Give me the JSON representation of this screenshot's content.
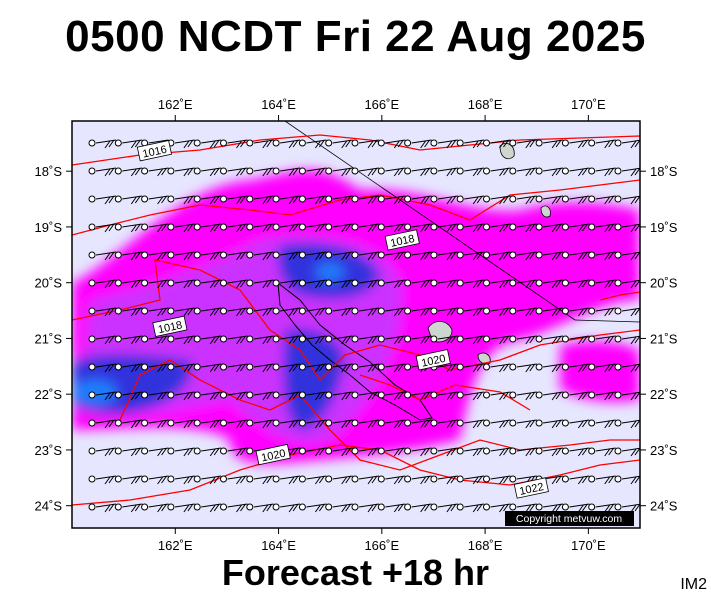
{
  "header": {
    "title": "0500 NCDT Fri 22 Aug 2025"
  },
  "footer": {
    "forecast": "Forecast +18 hr",
    "code": "IM2"
  },
  "map": {
    "lon_range": [
      160,
      171
    ],
    "lat_range": [
      -24.4,
      -17.1
    ],
    "lon_ticks": [
      {
        "lon": 162,
        "label": "162˚E"
      },
      {
        "lon": 164,
        "label": "164˚E"
      },
      {
        "lon": 166,
        "label": "166˚E"
      },
      {
        "lon": 168,
        "label": "168˚E"
      },
      {
        "lon": 170,
        "label": "170˚E"
      }
    ],
    "lat_ticks": [
      {
        "lat": -18,
        "label": "18˚S"
      },
      {
        "lat": -19,
        "label": "19˚S"
      },
      {
        "lat": -20,
        "label": "20˚S"
      },
      {
        "lat": -21,
        "label": "21˚S"
      },
      {
        "lat": -22,
        "label": "22˚S"
      },
      {
        "lat": -23,
        "label": "23˚S"
      },
      {
        "lat": -24,
        "label": "24˚S"
      }
    ],
    "isobars": [
      {
        "value": "1016",
        "label_lon": 161.6,
        "label_lat": -17.65
      },
      {
        "value": "1018",
        "label_lon": 161.9,
        "label_lat": -20.8
      },
      {
        "value": "1018",
        "label_lon": 166.4,
        "label_lat": -19.25
      },
      {
        "value": "1020",
        "label_lon": 167.0,
        "label_lat": -21.4
      },
      {
        "value": "1020",
        "label_lon": 163.9,
        "label_lat": -23.1
      },
      {
        "value": "1022",
        "label_lon": 168.9,
        "label_lat": -23.7
      }
    ],
    "copyright": "Copyright metvuw.com",
    "colors": {
      "background": "#e6e6ff",
      "precip_light": "#ff00ff",
      "precip_mid": "#cc33ff",
      "precip_heavy": "#3333dd",
      "precip_extreme": "#1f7fff",
      "isobar": "#ff0000",
      "land": "#cfd6cf"
    }
  }
}
